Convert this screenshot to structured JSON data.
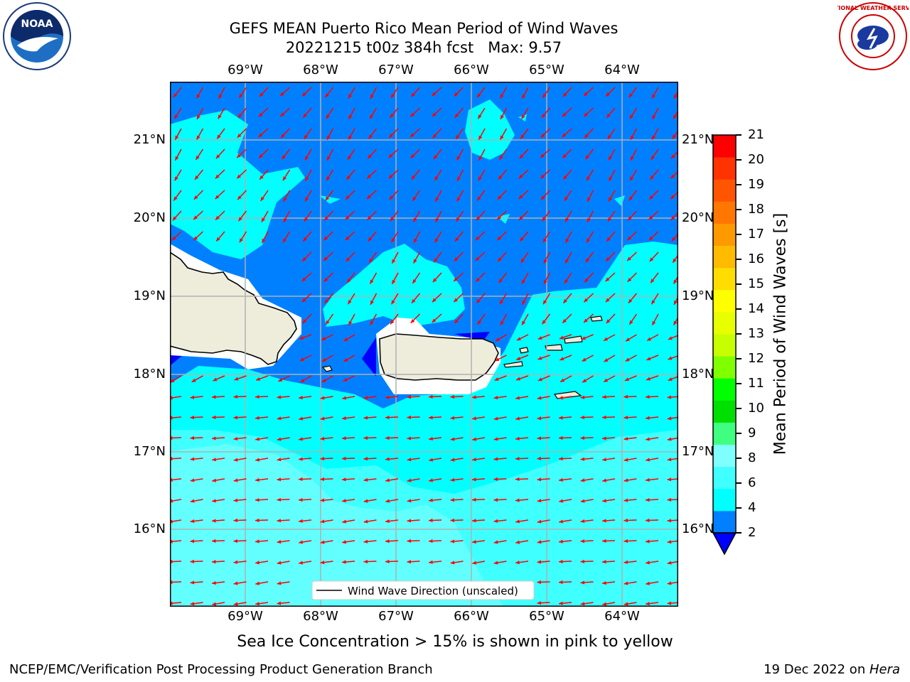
{
  "title": {
    "line1": "GEFS MEAN Puerto Rico Mean Period of Wind Waves",
    "line2": "20221215 t00z 384h fcst   Max: 9.57"
  },
  "logos": {
    "left": {
      "icon": "noaa-logo",
      "text": "NOAA"
    },
    "right": {
      "icon": "national-weather-service-logo",
      "text": "NATIONAL WEATHER SERVICE"
    }
  },
  "map": {
    "lon_labels": [
      "69°W",
      "68°W",
      "67°W",
      "66°W",
      "65°W",
      "64°W"
    ],
    "lat_labels": [
      "21°N",
      "20°N",
      "19°N",
      "18°N",
      "17°N",
      "16°N"
    ],
    "legend_label": "Wind Wave Direction (unscaled)",
    "arrow_color": "#ff0000",
    "land_color": "#eeeddc"
  },
  "colorbar": {
    "label": "Mean Period of Wind Waves [s]",
    "ticks": [
      "21",
      "20",
      "19",
      "18",
      "17",
      "16",
      "15",
      "14",
      "13",
      "12",
      "11",
      "10",
      "9",
      "8",
      "6",
      "4",
      "2"
    ],
    "colors": [
      "#0000ff",
      "#0080ff",
      "#00ffff",
      "#40ffff",
      "#80ffff",
      "#40ff80",
      "#00e000",
      "#00ff00",
      "#80ff00",
      "#c8ff00",
      "#e8ff00",
      "#ffff00",
      "#ffdd00",
      "#ffbb00",
      "#ff9900",
      "#ff7700",
      "#ff5500",
      "#ff3300",
      "#ff0000"
    ]
  },
  "caption": "Sea Ice Concentration > 15% is shown in pink to yellow",
  "footer": {
    "left": "NCEP/EMC/Verification Post Processing Product Generation Branch",
    "right_prefix": "19 Dec 2022 on ",
    "right_host": "Hera"
  }
}
